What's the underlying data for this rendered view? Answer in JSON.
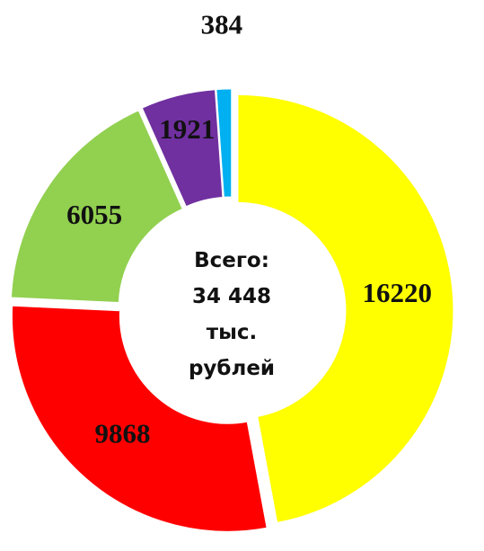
{
  "chart_data": {
    "type": "donut",
    "categories": [
      null,
      null,
      null,
      null,
      null
    ],
    "values": [
      16220,
      9868,
      6055,
      1921,
      384
    ],
    "colors": [
      "#ffff00",
      "#ff0000",
      "#92d050",
      "#7030a0",
      "#00b0f0"
    ],
    "center_label": "Всего: 34 448 тыс. рублей"
  }
}
